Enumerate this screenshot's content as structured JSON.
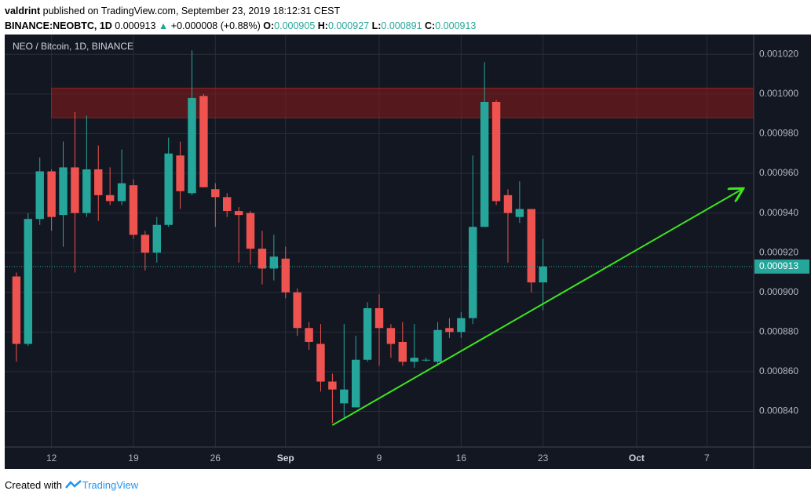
{
  "header": {
    "author": "valdrint",
    "published": "published on TradingView.com, September 23, 2019 18:12:31 CEST",
    "symbol": "BINANCE:NEOBTC, 1D",
    "last": 0.000913,
    "arrow": "▲",
    "change": "+0.000008 (+0.88%)",
    "o_label": "O:",
    "o": 0.000905,
    "h_label": "H:",
    "h": 0.000927,
    "l_label": "L:",
    "l": 0.000891,
    "c_label": "C:",
    "c": 0.000913
  },
  "chart_data": {
    "type": "candlestick",
    "title": "NEO / Bitcoin, 1D, BINANCE",
    "x": [
      "2019-08-09",
      "2019-08-10",
      "2019-08-11",
      "2019-08-12",
      "2019-08-13",
      "2019-08-14",
      "2019-08-15",
      "2019-08-16",
      "2019-08-17",
      "2019-08-18",
      "2019-08-19",
      "2019-08-20",
      "2019-08-21",
      "2019-08-22",
      "2019-08-23",
      "2019-08-24",
      "2019-08-25",
      "2019-08-26",
      "2019-08-27",
      "2019-08-28",
      "2019-08-29",
      "2019-08-30",
      "2019-08-31",
      "2019-09-01",
      "2019-09-02",
      "2019-09-03",
      "2019-09-04",
      "2019-09-05",
      "2019-09-06",
      "2019-09-07",
      "2019-09-08",
      "2019-09-09",
      "2019-09-10",
      "2019-09-11",
      "2019-09-12",
      "2019-09-13",
      "2019-09-14",
      "2019-09-15",
      "2019-09-16",
      "2019-09-17",
      "2019-09-18",
      "2019-09-19",
      "2019-09-20",
      "2019-09-21",
      "2019-09-22",
      "2019-09-23"
    ],
    "open": [
      0.000908,
      0.000874,
      0.000937,
      0.000961,
      0.000939,
      0.000963,
      0.00094,
      0.000962,
      0.000949,
      0.000946,
      0.000954,
      0.000929,
      0.00092,
      0.000934,
      0.000969,
      0.00095,
      0.000999,
      0.000952,
      0.000948,
      0.000941,
      0.00094,
      0.000922,
      0.000912,
      0.000917,
      0.0009,
      0.000882,
      0.000874,
      0.000855,
      0.000844,
      0.000842,
      0.000866,
      0.000892,
      0.000882,
      0.000875,
      0.000865,
      0.000866,
      0.000865,
      0.000882,
      0.00088,
      0.000887,
      0.000933,
      0.000996,
      0.000949,
      0.000938,
      0.000942,
      0.000905
    ],
    "high": [
      0.00091,
      0.00094,
      0.000968,
      0.000962,
      0.000976,
      0.000991,
      0.000989,
      0.000974,
      0.000963,
      0.000972,
      0.000957,
      0.000931,
      0.000938,
      0.000978,
      0.000976,
      0.001022,
      0.001,
      0.000955,
      0.00095,
      0.000943,
      0.000941,
      0.000931,
      0.000929,
      0.000923,
      0.000902,
      0.000885,
      0.000884,
      0.000859,
      0.000884,
      0.000878,
      0.000895,
      0.000899,
      0.000884,
      0.000885,
      0.000884,
      0.000867,
      0.000885,
      0.000887,
      0.00089,
      0.000969,
      0.001016,
      0.000997,
      0.000952,
      0.000956,
      0.000942,
      0.000927
    ],
    "low": [
      0.000865,
      0.000873,
      0.000934,
      0.000931,
      0.000923,
      0.00091,
      0.000938,
      0.000936,
      0.000944,
      0.000944,
      0.000927,
      0.000911,
      0.000915,
      0.000933,
      0.000942,
      0.000949,
      0.000953,
      0.000933,
      0.000938,
      0.000915,
      0.000914,
      0.000904,
      0.000906,
      0.000897,
      0.000878,
      0.000871,
      0.00085,
      0.000834,
      0.000836,
      0.000842,
      0.000865,
      0.000863,
      0.000867,
      0.000863,
      0.000862,
      0.000865,
      0.000863,
      0.000877,
      0.000877,
      0.000884,
      0.000933,
      0.000944,
      0.000915,
      0.000935,
      0.0009,
      0.000891
    ],
    "close": [
      0.000874,
      0.000937,
      0.000961,
      0.000938,
      0.000963,
      0.00094,
      0.000962,
      0.000949,
      0.000946,
      0.000955,
      0.000929,
      0.00092,
      0.000934,
      0.00097,
      0.000951,
      0.000998,
      0.000953,
      0.000948,
      0.000941,
      0.000939,
      0.000922,
      0.000912,
      0.000918,
      0.0009,
      0.000882,
      0.000875,
      0.000855,
      0.000851,
      0.000851,
      0.000866,
      0.000892,
      0.000882,
      0.000874,
      0.000865,
      0.000867,
      0.000866,
      0.000881,
      0.00088,
      0.000887,
      0.000933,
      0.000996,
      0.000946,
      0.00094,
      0.000942,
      0.000905,
      0.000913
    ],
    "up_color": "#26a69a",
    "down_color": "#ef5350",
    "xlim": [
      "2019-08-08",
      "2019-10-11"
    ],
    "xticks": [
      {
        "value": "2019-08-12",
        "label": "12"
      },
      {
        "value": "2019-08-19",
        "label": "19"
      },
      {
        "value": "2019-08-26",
        "label": "26"
      },
      {
        "value": "2019-09-01",
        "label": "Sep"
      },
      {
        "value": "2019-09-09",
        "label": "9"
      },
      {
        "value": "2019-09-16",
        "label": "16"
      },
      {
        "value": "2019-09-23",
        "label": "23"
      },
      {
        "value": "2019-10-01",
        "label": "Oct"
      },
      {
        "value": "2019-10-07",
        "label": "7"
      }
    ],
    "ylim": [
      0.000822,
      0.00103
    ],
    "yticks": [
      {
        "value": 0.00084,
        "label": "0.000840"
      },
      {
        "value": 0.00086,
        "label": "0.000860"
      },
      {
        "value": 0.00088,
        "label": "0.000880"
      },
      {
        "value": 0.0009,
        "label": "0.000900"
      },
      {
        "value": 0.00092,
        "label": "0.000920"
      },
      {
        "value": 0.00094,
        "label": "0.000940"
      },
      {
        "value": 0.00096,
        "label": "0.000960"
      },
      {
        "value": 0.00098,
        "label": "0.000980"
      },
      {
        "value": 0.001,
        "label": "0.001000"
      },
      {
        "value": 0.00102,
        "label": "0.001020"
      }
    ],
    "grid": true,
    "last_price": 0.000913,
    "zone": {
      "from": "2019-08-12",
      "low": 0.000988,
      "high": 0.001003,
      "color": "#8b1a1a"
    },
    "trendline": {
      "x": [
        "2019-09-05",
        "2019-10-10"
      ],
      "y": [
        0.000833,
        0.000952
      ],
      "color": "#3ce61e"
    }
  },
  "footer": {
    "prefix": "Created with",
    "brand": "TradingView"
  }
}
